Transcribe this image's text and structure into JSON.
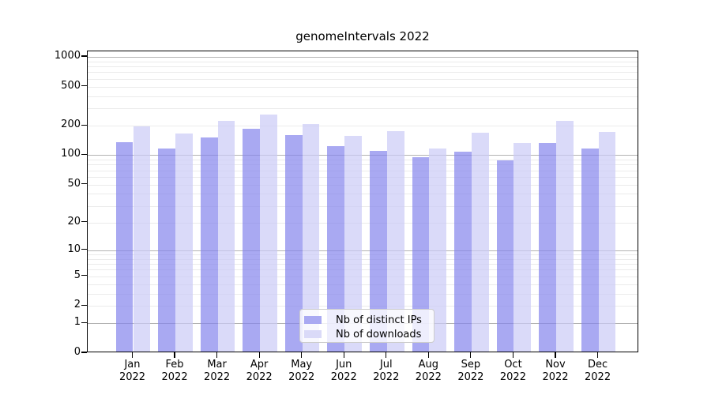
{
  "window": {
    "title": "genomeIntervals 2022"
  },
  "chart_data": {
    "type": "bar",
    "title": "genomeIntervals 2022",
    "categories": [
      "Jan 2022",
      "Feb 2022",
      "Mar 2022",
      "Apr 2022",
      "May 2022",
      "Jun 2022",
      "Jul 2022",
      "Aug 2022",
      "Sep 2022",
      "Oct 2022",
      "Nov 2022",
      "Dec 2022"
    ],
    "x_months": [
      "Jan",
      "Feb",
      "Mar",
      "Apr",
      "May",
      "Jun",
      "Jul",
      "Aug",
      "Sep",
      "Oct",
      "Nov",
      "Dec"
    ],
    "x_year": "2022",
    "series": [
      {
        "name": "Nb of distinct IPs",
        "color": "rgba(132,132,236,0.7)",
        "legend_color": "#a9a9f2",
        "values": [
          132,
          113,
          145,
          179,
          156,
          119,
          107,
          92,
          104,
          86,
          129,
          113
        ]
      },
      {
        "name": "Nb of downloads",
        "color": "rgba(202,202,246,0.7)",
        "legend_color": "#dadaf8",
        "values": [
          188,
          160,
          216,
          250,
          199,
          152,
          170,
          112,
          162,
          128,
          217,
          166
        ]
      }
    ],
    "y_scale": "log10(1+y)",
    "y_ticks": [
      0,
      1,
      2,
      5,
      10,
      20,
      50,
      100,
      200,
      500,
      1000
    ],
    "ylim": [
      0,
      1140
    ],
    "xlabel": "",
    "ylabel": "",
    "grid": "horizontal, minor log gridlines light gray, decade lines (1,10,100,1000) darker gray",
    "legend_position": "bottom-center",
    "colors": {
      "axis": "#000000",
      "minor_grid": "#ebebeb",
      "decade_grid": "#b3b3b3",
      "background": "#ffffff"
    }
  }
}
